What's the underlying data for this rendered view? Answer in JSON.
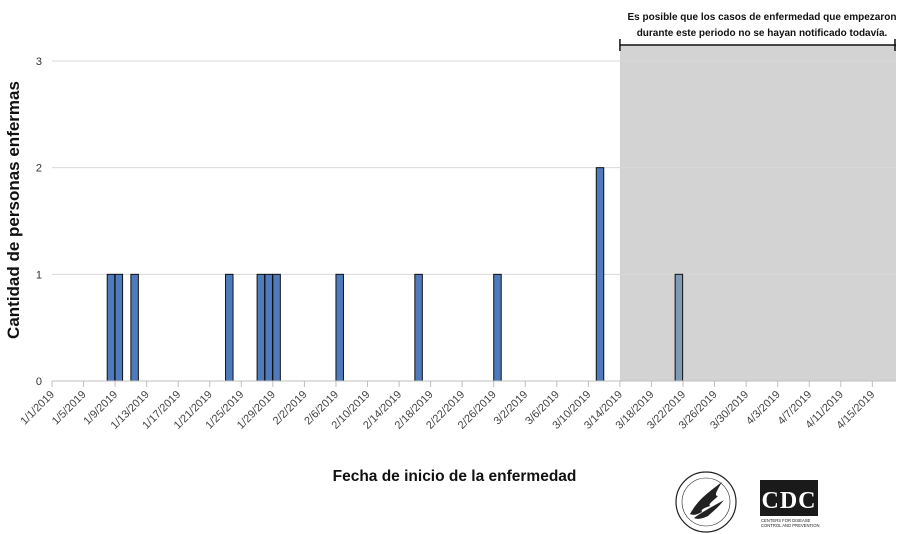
{
  "chart_data": {
    "type": "bar",
    "title": "",
    "xlabel": "Fecha de inicio de la enfermedad",
    "ylabel": "Cantidad de personas enfermas",
    "ylim": [
      0,
      3
    ],
    "yticks": [
      "0",
      "1",
      "2",
      "3"
    ],
    "x_start": "1/1/2019",
    "x_end": "4/18/2019",
    "xtick_labels": [
      "1/1/2019",
      "1/5/2019",
      "1/9/2019",
      "1/13/2019",
      "1/17/2019",
      "1/21/2019",
      "1/25/2019",
      "1/29/2019",
      "2/2/2019",
      "2/6/2019",
      "2/10/2019",
      "2/14/2019",
      "2/18/2019",
      "2/22/2019",
      "2/26/2019",
      "3/2/2019",
      "3/6/2019",
      "3/10/2019",
      "3/14/2019",
      "3/18/2019",
      "3/22/2019",
      "3/26/2019",
      "3/30/2019",
      "4/3/2019",
      "4/7/2019",
      "4/11/2019",
      "4/15/2019"
    ],
    "categories": [
      "1/8/2019",
      "1/9/2019",
      "1/11/2019",
      "1/23/2019",
      "1/27/2019",
      "1/28/2019",
      "1/29/2019",
      "2/6/2019",
      "2/16/2019",
      "2/26/2019",
      "3/11/2019",
      "3/21/2019"
    ],
    "values": [
      1,
      1,
      1,
      1,
      1,
      1,
      1,
      1,
      1,
      1,
      2,
      1
    ],
    "grid": true,
    "bar_color": "#4f7bbd",
    "shaded_bar_color": "#8099b4",
    "shaded_region": {
      "start": "3/14/2019",
      "end": "4/18/2019",
      "color": "#d3d3d3",
      "annotation": "Es posible que los casos de enfermedad que empezaron durante este periodo no se hayan notificado todavía."
    }
  },
  "logos": {
    "hhs": "hhs-eagle-seal",
    "cdc": "CDC",
    "cdc_sub1": "CENTERS FOR DISEASE",
    "cdc_sub2": "CONTROL AND PREVENTION"
  }
}
